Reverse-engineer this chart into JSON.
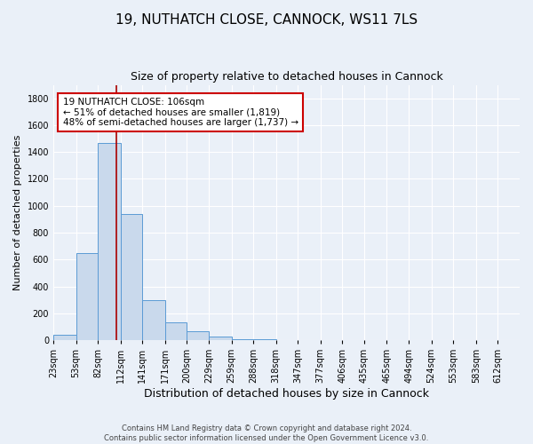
{
  "title": "19, NUTHATCH CLOSE, CANNOCK, WS11 7LS",
  "subtitle": "Size of property relative to detached houses in Cannock",
  "xlabel": "Distribution of detached houses by size in Cannock",
  "ylabel": "Number of detached properties",
  "bin_edges": [
    23,
    53,
    82,
    112,
    141,
    171,
    200,
    229,
    259,
    288,
    318,
    347,
    377,
    406,
    435,
    465,
    494,
    524,
    553,
    583,
    612
  ],
  "bar_heights": [
    40,
    650,
    1470,
    940,
    295,
    130,
    65,
    25,
    10,
    5,
    2,
    1,
    0,
    0,
    0,
    0,
    0,
    0,
    0,
    0
  ],
  "bar_color": "#c9d9ec",
  "bar_edge_color": "#5b9bd5",
  "vline_x": 106,
  "vline_color": "#aa0000",
  "ylim": [
    0,
    1900
  ],
  "yticks": [
    0,
    200,
    400,
    600,
    800,
    1000,
    1200,
    1400,
    1600,
    1800
  ],
  "annotation_line1": "19 NUTHATCH CLOSE: 106sqm",
  "annotation_line2": "← 51% of detached houses are smaller (1,819)",
  "annotation_line3": "48% of semi-detached houses are larger (1,737) →",
  "annotation_box_color": "#ffffff",
  "annotation_box_edge": "#cc0000",
  "footer_line1": "Contains HM Land Registry data © Crown copyright and database right 2024.",
  "footer_line2": "Contains public sector information licensed under the Open Government Licence v3.0.",
  "background_color": "#eaf0f8",
  "title_fontsize": 11,
  "subtitle_fontsize": 9,
  "xlabel_fontsize": 9,
  "ylabel_fontsize": 8,
  "tick_fontsize": 7,
  "annotation_fontsize": 7.5
}
